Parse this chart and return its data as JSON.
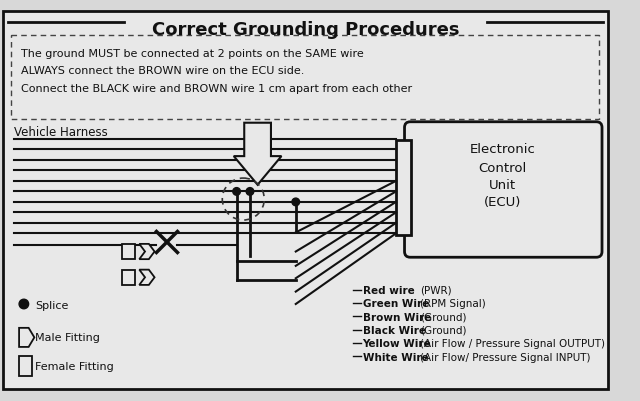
{
  "title": "Correct Grounding Procedures",
  "bg_color": "#f0f0f0",
  "instruction_lines": [
    "The ground MUST be connected at 2 points on the SAME wire",
    "ALWAYS connect the BROWN wire on the ECU side.",
    "Connect the BLACK wire and BROWN wire 1 cm apart from each other"
  ],
  "vehicle_harness_label": "Vehicle Harness",
  "ecu_label": [
    "Electronic",
    "Control",
    "Unit",
    "(ECU)"
  ],
  "wire_labels": [
    [
      "Red wire",
      "(PWR)"
    ],
    [
      "Green Wire",
      "(RPM Signal)"
    ],
    [
      "Brown Wire",
      "(Ground)"
    ],
    [
      "Black Wire",
      "(Ground)"
    ],
    [
      "Yellow Wire",
      "(Air Flow / Pressure Signal OUTPUT)"
    ],
    [
      "White Wire",
      "(Air Flow/ Pressure Signal INPUT)"
    ]
  ],
  "legend_labels": [
    "Splice",
    "Male Fitting",
    "Female Fitting"
  ]
}
